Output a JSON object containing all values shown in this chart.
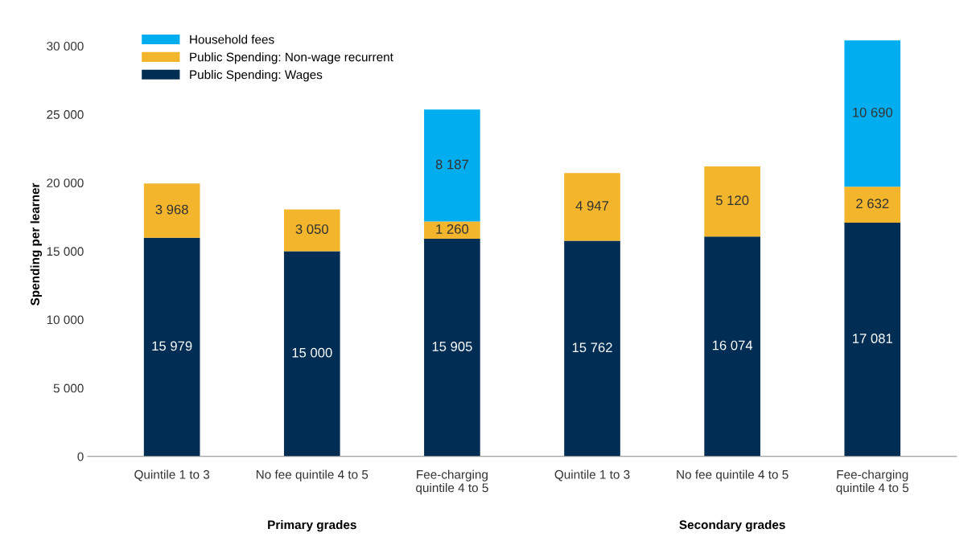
{
  "chart_data": {
    "type": "bar",
    "stacked": true,
    "ylabel": "Spending per learner",
    "categories": [
      "Quintile 1 to 3",
      "No fee quintile 4 to 5",
      "Fee-charging\nquintile 4 to 5",
      "Quintile 1 to 3",
      "No fee quintile 4 to 5",
      "Fee-charging\nquintile 4 to 5"
    ],
    "series": [
      {
        "name": "Public Spending: Wages",
        "color": "#002d54",
        "values": [
          15979,
          15000,
          15905,
          15762,
          16074,
          17081
        ],
        "value_labels": [
          "15 979",
          "15 000",
          "15 905",
          "15 762",
          "16 074",
          "17 081"
        ]
      },
      {
        "name": "Public Spending: Non-wage recurrent",
        "color": "#f2b52b",
        "values": [
          3968,
          3050,
          1260,
          4947,
          5120,
          2632
        ],
        "value_labels": [
          "3 968",
          "3 050",
          "1 260",
          "4 947",
          "5 120",
          "2 632"
        ]
      },
      {
        "name": "Household fees",
        "color": "#00aeef",
        "values": [
          null,
          null,
          8187,
          null,
          null,
          10690
        ],
        "value_labels": [
          null,
          null,
          "8 187",
          null,
          null,
          "10 690"
        ]
      }
    ],
    "ylim": [
      0,
      31000
    ],
    "yticks": [
      0,
      {
        "value": 5000,
        "label": "5 000"
      },
      {
        "value": 10000,
        "label": "10 000"
      },
      {
        "value": 15000,
        "label": "15 000"
      },
      {
        "value": 20000,
        "label": "20 000"
      },
      {
        "value": 25000,
        "label": "25 000"
      },
      {
        "value": 30000,
        "label": "30 000"
      }
    ],
    "annotations": [
      "Primary grades",
      "Secondary grades"
    ],
    "legend": "top left",
    "grid": false
  }
}
